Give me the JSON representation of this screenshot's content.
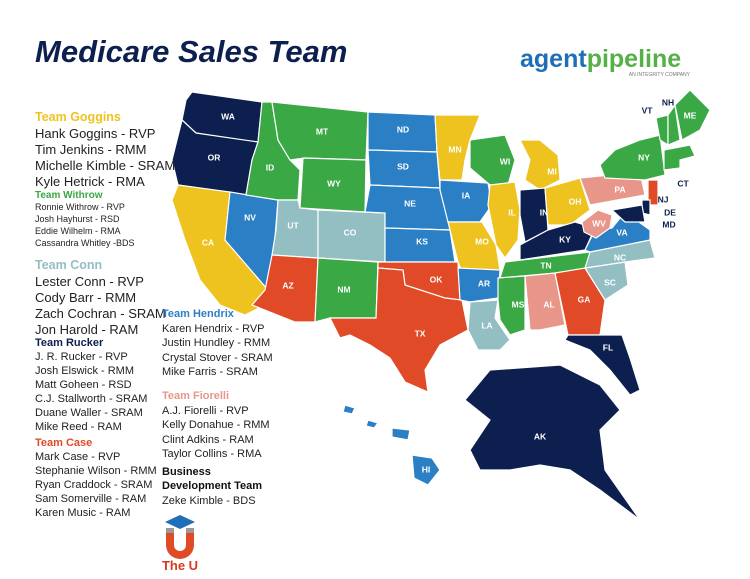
{
  "header": {
    "title": "Medicare Sales Team",
    "logo_part1": "agent",
    "logo_part2": "pipeline",
    "logo_tagline": "AN INTEGRITY COMPANY"
  },
  "teams": [
    {
      "name": "Team Goggins",
      "color": "#eec21f",
      "members": [
        "Hank Goggins - RVP",
        "Tim Jenkins - RMM",
        "Michelle Kimble - SRAM",
        "Kyle Hetrick - RMA"
      ]
    },
    {
      "name": "Team Withrow",
      "color": "#3aa845",
      "members": [
        "Ronnie Withrow - RVP",
        "Josh Hayhurst - RSD",
        "Eddie Wilhelm - RMA",
        "Cassandra Whitley -BDS"
      ]
    },
    {
      "name": "Team Conn",
      "color": "#93bfc3",
      "members": [
        "Lester Conn - RVP",
        "Cody Barr - RMM",
        "Zach Cochran - SRAM",
        "Jon Harold - RAM"
      ]
    },
    {
      "name": "Team Rucker",
      "color": "#0d1f4e",
      "members": [
        "J. R. Rucker - RVP",
        "Josh Elswick - RMM",
        "Matt Goheen - RSD",
        "C.J. Stallworth - SRAM",
        "Duane Waller - SRAM",
        "Mike Reed - RAM"
      ]
    },
    {
      "name": "Team Case",
      "color": "#e04a27",
      "members": [
        "Mark Case - RVP",
        "Stephanie Wilson - RMM",
        "Ryan Craddock - SRAM",
        "Sam Somerville - RAM",
        "Karen Music - RAM"
      ]
    },
    {
      "name": "Team Hendrix",
      "color": "#2b7fc4",
      "members": [
        "Karen Hendrix - RVP",
        "Justin Hundley - RMM",
        "Crystal Stover - SRAM",
        "Mike Farris - SRAM"
      ]
    },
    {
      "name": "Team Fiorelli",
      "color": "#e8968a",
      "members": [
        "A.J. Fiorelli - RVP",
        "Kelly Donahue - RMM",
        "Clint Adkins - RAM",
        "Taylor Collins - RMA"
      ]
    },
    {
      "name": "Business Development Team",
      "color": "#111111",
      "members": [
        "Zeke Kimble - BDS"
      ]
    }
  ],
  "states": [
    {
      "label": "WA",
      "color": "#0d1f4e"
    },
    {
      "label": "OR",
      "color": "#0d1f4e"
    },
    {
      "label": "CA",
      "color": "#eec21f"
    },
    {
      "label": "NV",
      "color": "#2b7fc4"
    },
    {
      "label": "ID",
      "color": "#3aa845"
    },
    {
      "label": "MT",
      "color": "#3aa845"
    },
    {
      "label": "WY",
      "color": "#3aa845"
    },
    {
      "label": "UT",
      "color": "#93bfc3"
    },
    {
      "label": "CO",
      "color": "#93bfc3"
    },
    {
      "label": "AZ",
      "color": "#e04a27"
    },
    {
      "label": "NM",
      "color": "#3aa845"
    },
    {
      "label": "ND",
      "color": "#2b7fc4"
    },
    {
      "label": "SD",
      "color": "#2b7fc4"
    },
    {
      "label": "NE",
      "color": "#2b7fc4"
    },
    {
      "label": "KS",
      "color": "#2b7fc4"
    },
    {
      "label": "OK",
      "color": "#e04a27"
    },
    {
      "label": "TX",
      "color": "#e04a27"
    },
    {
      "label": "MN",
      "color": "#eec21f"
    },
    {
      "label": "IA",
      "color": "#2b7fc4"
    },
    {
      "label": "MO",
      "color": "#eec21f"
    },
    {
      "label": "AR",
      "color": "#2b7fc4"
    },
    {
      "label": "LA",
      "color": "#93bfc3"
    },
    {
      "label": "WI",
      "color": "#3aa845"
    },
    {
      "label": "IL",
      "color": "#eec21f"
    },
    {
      "label": "MI",
      "color": "#eec21f"
    },
    {
      "label": "IN",
      "color": "#0d1f4e"
    },
    {
      "label": "OH",
      "color": "#eec21f"
    },
    {
      "label": "KY",
      "color": "#0d1f4e"
    },
    {
      "label": "TN",
      "color": "#3aa845"
    },
    {
      "label": "MS",
      "color": "#3aa845"
    },
    {
      "label": "AL",
      "color": "#e8968a"
    },
    {
      "label": "GA",
      "color": "#e04a27"
    },
    {
      "label": "FL",
      "color": "#0d1f4e"
    },
    {
      "label": "SC",
      "color": "#93bfc3"
    },
    {
      "label": "NC",
      "color": "#93bfc3"
    },
    {
      "label": "VA",
      "color": "#2b7fc4"
    },
    {
      "label": "WV",
      "color": "#e8968a"
    },
    {
      "label": "PA",
      "color": "#e8968a"
    },
    {
      "label": "NY",
      "color": "#3aa845"
    },
    {
      "label": "VT",
      "color": "#3aa845"
    },
    {
      "label": "NH",
      "color": "#3aa845"
    },
    {
      "label": "ME",
      "color": "#3aa845"
    },
    {
      "label": "CT",
      "color": "#3aa845"
    },
    {
      "label": "NJ",
      "color": "#e04a27"
    },
    {
      "label": "DE",
      "color": "#0d1f4e"
    },
    {
      "label": "MD",
      "color": "#0d1f4e"
    },
    {
      "label": "AK",
      "color": "#0d1f4e"
    },
    {
      "label": "HI",
      "color": "#2b7fc4"
    }
  ],
  "footer": {
    "label": "The U"
  }
}
